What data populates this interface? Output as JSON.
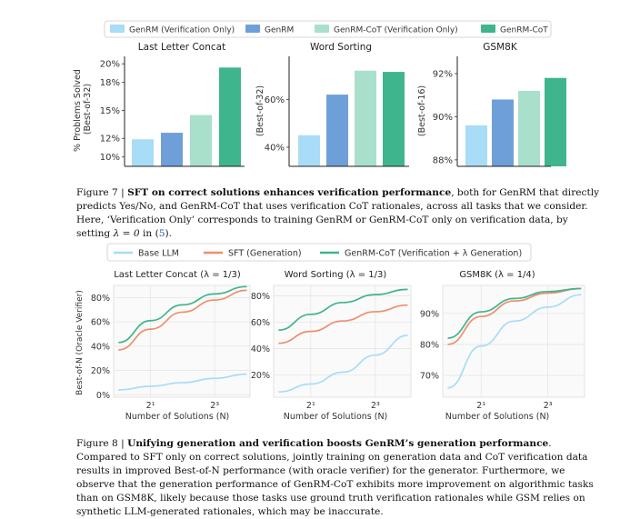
{
  "figure7": {
    "legend": [
      {
        "label": "GenRM (Verification Only)",
        "color": "#a8dcf7"
      },
      {
        "label": "GenRM",
        "color": "#6f9fd8"
      },
      {
        "label": "GenRM-CoT (Verification Only)",
        "color": "#a9e0cc"
      },
      {
        "label": "GenRM-CoT",
        "color": "#3fb58e"
      }
    ],
    "caption": {
      "prefix": "Figure 7 | ",
      "bold": "SFT on correct solutions enhances verification performance",
      "text1": ", both for GenRM that directly predicts Yes/No, and GenRM-CoT that uses verification CoT rationales, across all tasks that we consider. Here, ‘Verification Only’ corresponds to training GenRM or GenRM-CoT only on verification data, by setting ",
      "math": "λ = 0",
      "text2": " in (",
      "ref": "5",
      "text3": ")."
    }
  },
  "figure8": {
    "legend": [
      {
        "label": "Base LLM",
        "color": "#a8dcf7"
      },
      {
        "label": "SFT (Generation)",
        "color": "#ee8f6d"
      },
      {
        "label": "GenRM-CoT (Verification + λ Generation)",
        "color": "#3fb58e"
      }
    ],
    "caption": {
      "prefix": "Figure 8 | ",
      "bold": "Unifying generation and verification boosts GenRM’s generation performance",
      "text": ". Compared to SFT only on correct solutions, jointly training on generation data and CoT verification data results in improved Best-of-N performance (with oracle verifier) for the generator. Furthermore, we observe that the generation performance of GenRM-CoT exhibits more improvement on algorithmic tasks than on GSM8K, likely because those tasks use ground truth verification rationales while GSM relies on synthetic LLM-generated rationales, which may be inaccurate."
    }
  },
  "chart_data": [
    {
      "type": "bar",
      "title": "Last Letter Concat",
      "ylabel": "% Problems Solved\n(Best-of-32)",
      "categories": [
        "GenRM (Verification Only)",
        "GenRM",
        "GenRM-CoT (Verification Only)",
        "GenRM-CoT"
      ],
      "values": [
        11.9,
        12.6,
        14.5,
        19.6
      ],
      "ylim": [
        9,
        20.8
      ],
      "yticks": [
        10,
        12,
        15,
        18,
        20
      ],
      "yticklabels": [
        "10%",
        "12%",
        "15%",
        "18%",
        "20%"
      ]
    },
    {
      "type": "bar",
      "title": "Word Sorting",
      "ylabel": "(Best-of-32)",
      "categories": [
        "GenRM (Verification Only)",
        "GenRM",
        "GenRM-CoT (Verification Only)",
        "GenRM-CoT"
      ],
      "values": [
        45,
        62,
        72,
        71.5
      ],
      "ylim": [
        32,
        78
      ],
      "yticks": [
        40,
        60
      ],
      "yticklabels": [
        "40%",
        "60%"
      ]
    },
    {
      "type": "bar",
      "title": "GSM8K",
      "ylabel": "(Best-of-16)",
      "categories": [
        "GenRM (Verification Only)",
        "GenRM",
        "GenRM-CoT (Verification Only)",
        "GenRM-CoT"
      ],
      "values": [
        89.6,
        90.8,
        91.2,
        91.8
      ],
      "ylim": [
        87.7,
        92.8
      ],
      "yticks": [
        88,
        90,
        92
      ],
      "yticklabels": [
        "88%",
        "90%",
        "92%"
      ]
    },
    {
      "type": "line",
      "title": "Last Letter Concat (λ = 1/3)",
      "ylabel": "Best-of-N (Oracle Verifier)",
      "xlabel": "Number of Solutions (N)",
      "x": [
        1,
        2,
        3,
        4,
        5
      ],
      "xticks": [
        2,
        4
      ],
      "xticklabels": [
        "2¹",
        "2³"
      ],
      "ylim": [
        -2,
        90
      ],
      "yticks": [
        0,
        20,
        40,
        60,
        80
      ],
      "yticklabels": [
        "0%",
        "20%",
        "40%",
        "60%",
        "80%"
      ],
      "series": [
        {
          "name": "Base LLM",
          "values": [
            4,
            7,
            10,
            13.5,
            17
          ]
        },
        {
          "name": "SFT (Generation)",
          "values": [
            37,
            54,
            68,
            78,
            86
          ]
        },
        {
          "name": "GenRM-CoT (Verification + λ Generation)",
          "values": [
            43,
            61,
            74,
            83,
            89
          ]
        }
      ]
    },
    {
      "type": "line",
      "title": "Word Sorting (λ = 1/3)",
      "ylabel": "",
      "xlabel": "Number of Solutions (N)",
      "x": [
        1,
        2,
        3,
        4,
        5
      ],
      "xticks": [
        2,
        4
      ],
      "xticklabels": [
        "2¹",
        "2³"
      ],
      "ylim": [
        3,
        88
      ],
      "yticks": [
        20,
        40,
        60,
        80
      ],
      "yticklabels": [
        "20%",
        "40%",
        "60%",
        "80%"
      ],
      "series": [
        {
          "name": "Base LLM",
          "values": [
            7,
            13,
            22,
            35,
            50
          ]
        },
        {
          "name": "SFT (Generation)",
          "values": [
            44,
            53,
            61,
            68,
            73
          ]
        },
        {
          "name": "GenRM-CoT (Verification + λ Generation)",
          "values": [
            54,
            66,
            75,
            81,
            85
          ]
        }
      ]
    },
    {
      "type": "line",
      "title": "GSM8K (λ = 1/4)",
      "ylabel": "",
      "xlabel": "Number of Solutions (N)",
      "x": [
        1,
        2,
        3,
        4,
        5
      ],
      "xticks": [
        2,
        4
      ],
      "xticklabels": [
        "2¹",
        "2³"
      ],
      "ylim": [
        63,
        99
      ],
      "yticks": [
        70,
        80,
        90
      ],
      "yticklabels": [
        "70%",
        "80%",
        "90%"
      ],
      "series": [
        {
          "name": "Base LLM",
          "values": [
            66,
            79.5,
            87.5,
            92,
            96
          ]
        },
        {
          "name": "SFT (Generation)",
          "values": [
            80,
            89,
            94,
            96.5,
            98
          ]
        },
        {
          "name": "GenRM-CoT (Verification + λ Generation)",
          "values": [
            82,
            90.5,
            94.8,
            97,
            98
          ]
        }
      ]
    }
  ]
}
